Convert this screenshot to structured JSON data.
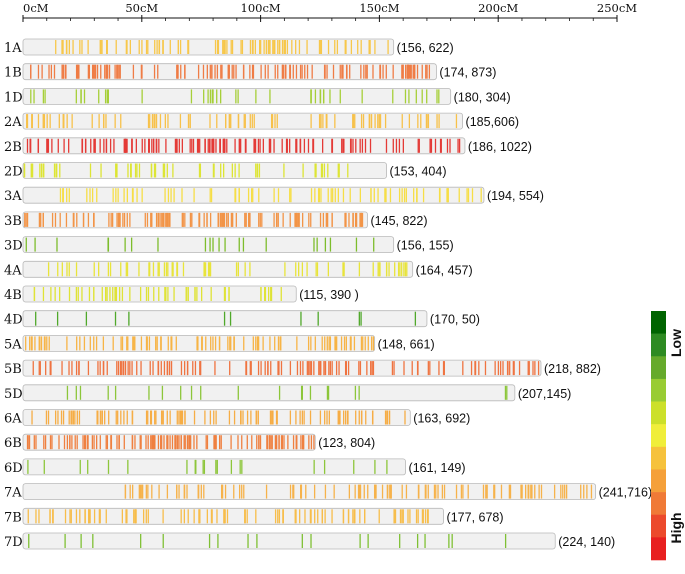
{
  "chart_data": {
    "type": "genetic_linkage_map",
    "axis": {
      "unit": "cM",
      "range": [
        0,
        250
      ],
      "ticks": [
        {
          "value": 0,
          "label": "0cM"
        },
        {
          "value": 50,
          "label": "50cM"
        },
        {
          "value": 100,
          "label": "100cM"
        },
        {
          "value": 150,
          "label": "150cM"
        },
        {
          "value": 200,
          "label": "200cM"
        },
        {
          "value": 250,
          "label": "250cM"
        }
      ]
    },
    "legend": {
      "low_label": "Low",
      "high_label": "High",
      "colors": [
        "#006400",
        "#2e8b22",
        "#66aa2b",
        "#99cc33",
        "#cce02a",
        "#f0ee3a",
        "#f6c23c",
        "#f5a03a",
        "#f07a37",
        "#ec4a2c",
        "#e82020"
      ]
    },
    "chromosomes": [
      {
        "name": "1A",
        "length": 156,
        "markers": 622,
        "annotation": "(156, 622)",
        "color": "#f7c74a",
        "start": 13,
        "density": 0.55
      },
      {
        "name": "1B",
        "length": 174,
        "markers": 873,
        "annotation": "(174, 873)",
        "color": "#ef7c45",
        "start": 0,
        "density": 0.55
      },
      {
        "name": "1D",
        "length": 180,
        "markers": 304,
        "annotation": "(180, 304)",
        "color": "#a6cf38",
        "start": 0,
        "density": 0.3
      },
      {
        "name": "2A",
        "length": 185,
        "markers": 606,
        "annotation": "(185,606)",
        "color": "#f7c14a",
        "start": 0,
        "density": 0.5
      },
      {
        "name": "2B",
        "length": 186,
        "markers": 1022,
        "annotation": "(186, 1022)",
        "color": "#e43a36",
        "start": 0,
        "density": 0.6
      },
      {
        "name": "2D",
        "length": 153,
        "markers": 404,
        "annotation": "(153, 404)",
        "color": "#dde534",
        "start": 0,
        "density": 0.4
      },
      {
        "name": "3A",
        "length": 194,
        "markers": 554,
        "annotation": "(194, 554)",
        "color": "#f6de46",
        "start": 13,
        "density": 0.5
      },
      {
        "name": "3B",
        "length": 145,
        "markers": 822,
        "annotation": "(145, 822)",
        "color": "#f29447",
        "start": 0,
        "density": 0.55
      },
      {
        "name": "3D",
        "length": 156,
        "markers": 155,
        "annotation": "(156, 155)",
        "color": "#7dbd2c",
        "start": 0,
        "density": 0.25
      },
      {
        "name": "4A",
        "length": 164,
        "markers": 457,
        "annotation": "(164, 457)",
        "color": "#e8e43a",
        "start": 10,
        "density": 0.45
      },
      {
        "name": "4B",
        "length": 115,
        "markers": 390,
        "annotation": "(115, 390 )",
        "color": "#dfe336",
        "start": 0,
        "density": 0.45
      },
      {
        "name": "4D",
        "length": 170,
        "markers": 50,
        "annotation": "(170, 50)",
        "color": "#4fa82a",
        "start": 0,
        "density": 0.15
      },
      {
        "name": "5A",
        "length": 148,
        "markers": 661,
        "annotation": "(148, 661)",
        "color": "#f7b446",
        "start": 0,
        "density": 0.5
      },
      {
        "name": "5B",
        "length": 218,
        "markers": 882,
        "annotation": "(218, 882)",
        "color": "#ef7340",
        "start": 0,
        "density": 0.55
      },
      {
        "name": "5D",
        "length": 207,
        "markers": 145,
        "annotation": "(207,145)",
        "color": "#8cc63a",
        "start": 0,
        "density": 0.25
      },
      {
        "name": "6A",
        "length": 163,
        "markers": 692,
        "annotation": "(163, 692)",
        "color": "#f6ad45",
        "start": 0,
        "density": 0.5
      },
      {
        "name": "6B",
        "length": 123,
        "markers": 804,
        "annotation": "(123, 804)",
        "color": "#ef8040",
        "start": 0,
        "density": 0.6
      },
      {
        "name": "6D",
        "length": 161,
        "markers": 149,
        "annotation": "(161, 149)",
        "color": "#8dc63b",
        "start": 0,
        "density": 0.25
      },
      {
        "name": "7A",
        "length": 241,
        "markers": 716,
        "annotation": "(241,716)",
        "color": "#f6b24a",
        "start": 32,
        "density": 0.45
      },
      {
        "name": "7B",
        "length": 177,
        "markers": 678,
        "annotation": "(177, 678)",
        "color": "#f7bd4a",
        "start": 0,
        "density": 0.5
      },
      {
        "name": "7D",
        "length": 224,
        "markers": 140,
        "annotation": "(224, 140)",
        "color": "#7fc034",
        "start": 0,
        "density": 0.25
      }
    ]
  }
}
